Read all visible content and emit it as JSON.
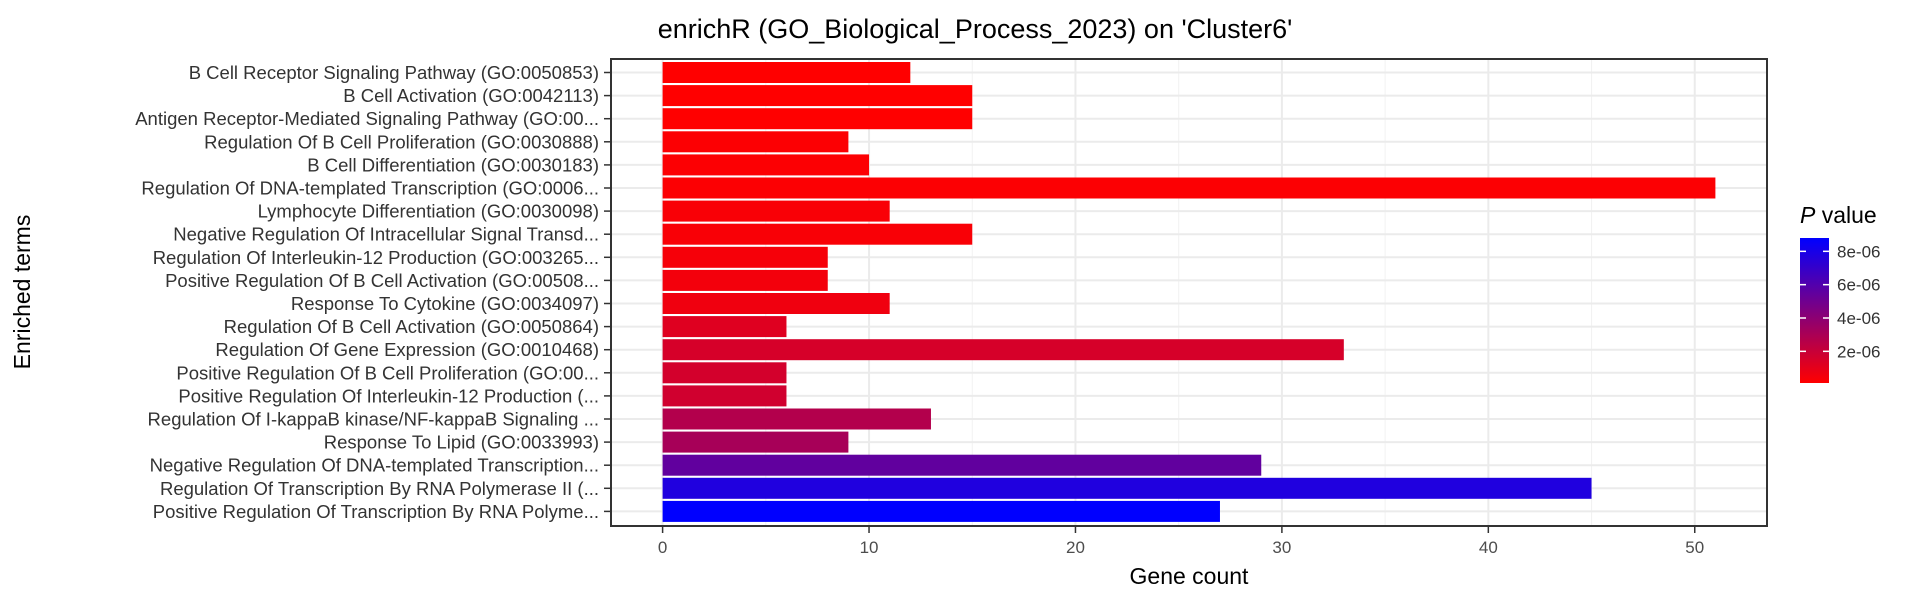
{
  "chart_data": {
    "type": "bar",
    "orientation": "horizontal",
    "title": "enrichR (GO_Biological_Process_2023) on 'Cluster6'",
    "xlabel": "Gene count",
    "ylabel": "Enriched terms",
    "xlim": [
      -2.5,
      53.5
    ],
    "xticks": [
      0,
      10,
      20,
      30,
      40,
      50
    ],
    "grid": true,
    "legend": {
      "title_symbol": "P",
      "title_text": " value",
      "placement": "right",
      "ticks": [
        "8e-06",
        "6e-06",
        "4e-06",
        "2e-06"
      ],
      "tick_values": [
        8e-06,
        6e-06,
        4e-06,
        2e-06
      ],
      "range": [
        1e-07,
        8.8e-06
      ],
      "color_low": "#ff0000",
      "color_high": "#0000ff"
    },
    "categories": [
      "B Cell Receptor Signaling Pathway (GO:0050853)",
      "B Cell Activation (GO:0042113)",
      "Antigen Receptor-Mediated Signaling Pathway (GO:00...",
      "Regulation Of B Cell Proliferation (GO:0030888)",
      "B Cell Differentiation (GO:0030183)",
      "Regulation Of DNA-templated Transcription (GO:0006...",
      "Lymphocyte Differentiation (GO:0030098)",
      "Negative Regulation Of Intracellular Signal Transd...",
      "Regulation Of Interleukin-12 Production (GO:003265...",
      "Positive Regulation Of B Cell Activation (GO:00508...",
      "Response To Cytokine (GO:0034097)",
      "Regulation Of B Cell Activation (GO:0050864)",
      "Regulation Of Gene Expression (GO:0010468)",
      "Positive Regulation Of B Cell Proliferation (GO:00...",
      "Positive Regulation Of Interleukin-12 Production (...",
      "Regulation Of I-kappaB kinase/NF-kappaB Signaling ...",
      "Response To Lipid (GO:0033993)",
      "Negative Regulation Of DNA-templated Transcription...",
      "Regulation Of Transcription By RNA Polymerase II (...",
      "Positive Regulation Of Transcription By RNA Polyme..."
    ],
    "values": [
      12,
      15,
      15,
      9,
      10,
      51,
      11,
      15,
      8,
      8,
      11,
      6,
      33,
      6,
      6,
      13,
      9,
      29,
      45,
      27
    ],
    "p_values": [
      1e-07,
      1e-07,
      1e-07,
      2e-07,
      2e-07,
      2e-07,
      3e-07,
      3e-07,
      4e-07,
      5e-07,
      6e-07,
      1.2e-06,
      1.5e-06,
      1.6e-06,
      1.7e-06,
      2.7e-06,
      3.1e-06,
      5.5e-06,
      7.7e-06,
      8.8e-06
    ]
  }
}
